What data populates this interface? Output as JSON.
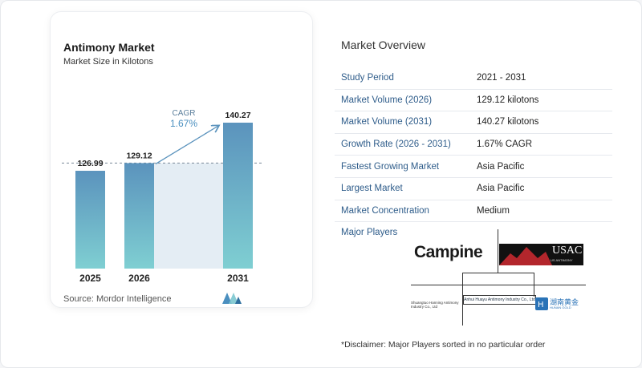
{
  "card": {
    "title": "Antimony Market",
    "subtitle": "Market Size in Kilotons",
    "source": "Source:  Mordor Intelligence",
    "cagr_label": "CAGR",
    "cagr_value": "1.67%"
  },
  "chart_data": {
    "type": "bar",
    "categories": [
      "2025",
      "2026",
      "2031"
    ],
    "values": [
      126.99,
      129.12,
      140.27
    ],
    "value_labels": [
      "126.99",
      "129.12",
      "140.27"
    ],
    "title": "Antimony Market",
    "subtitle": "Market Size in Kilotons",
    "xlabel": "",
    "ylabel": "",
    "annotation": "CAGR 1.67%",
    "grid": false,
    "colors": {
      "bar_top": "#5b93bd",
      "bar_bottom": "#7fcfd2",
      "shade": "#e4edf4",
      "arrow": "#5b93bd"
    }
  },
  "overview": {
    "title": "Market Overview",
    "rows": [
      {
        "label": "Study Period",
        "value": "2021 - 2031"
      },
      {
        "label": "Market Volume (2026)",
        "value": "129.12 kilotons"
      },
      {
        "label": "Market Volume (2031)",
        "value": "140.27 kilotons"
      },
      {
        "label": "Growth Rate (2026 - 2031)",
        "value": "1.67% CAGR"
      },
      {
        "label": "Fastest Growing Market",
        "value": "Asia Pacific"
      },
      {
        "label": "Largest Market",
        "value": "Asia Pacific"
      },
      {
        "label": "Market Concentration",
        "value": "Medium"
      }
    ],
    "players_label": "Major Players",
    "disclaimer": "*Disclaimer: Major Players sorted in no particular order"
  },
  "players": {
    "campine": "Campine",
    "usac": "USAC",
    "usac_sub": "US ANTIMONY",
    "shenzhen": "Shuangtuo Hanning Antimony Industry Co., Ltd",
    "anhui": "Anhui Huayu Antimony Industry Co., Ltd",
    "hunan": "湖南黄金",
    "hunan_sub": "HUNAN GOLD"
  }
}
